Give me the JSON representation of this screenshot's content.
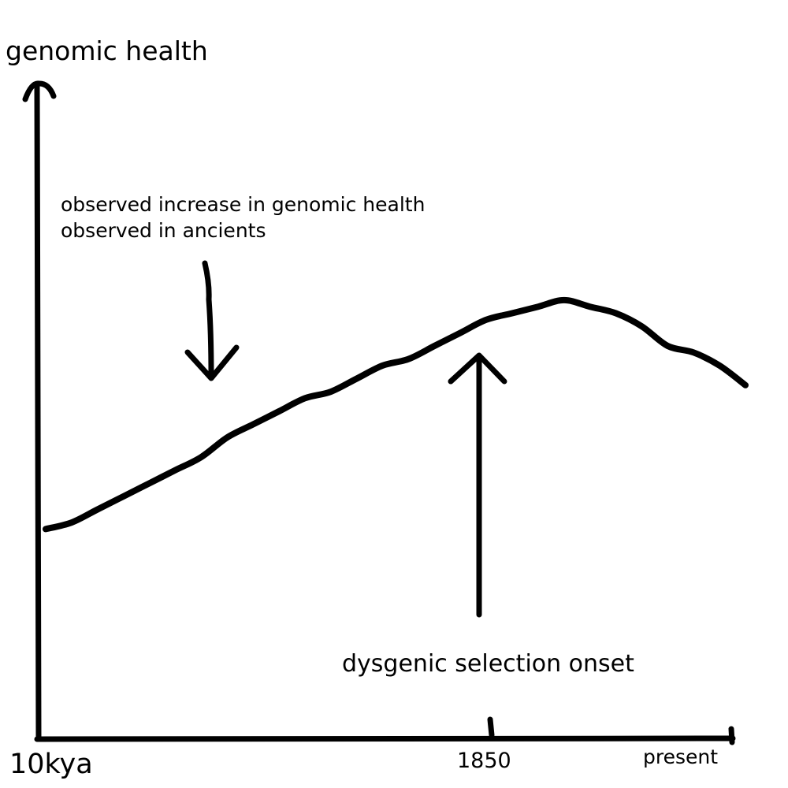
{
  "chart_data": {
    "type": "line",
    "title": "",
    "xlabel": "",
    "ylabel": "genomic health",
    "x_ticks": [
      "10kya",
      "1850",
      "present"
    ],
    "grid": false,
    "legend": "none",
    "series": [
      {
        "values": [
          0.32,
          0.33,
          0.35,
          0.37,
          0.39,
          0.41,
          0.43,
          0.46,
          0.48,
          0.5,
          0.52,
          0.53,
          0.55,
          0.57,
          0.58,
          0.6,
          0.62,
          0.64,
          0.65,
          0.66,
          0.67,
          0.66,
          0.65,
          0.63,
          0.6,
          0.59,
          0.57,
          0.54
        ]
      }
    ],
    "annotations": [
      {
        "label": "observed increase in genomic health",
        "label_line2": "observed in ancients",
        "target_x": 0.25,
        "direction": "down"
      },
      {
        "label": "dysgenic selection onset",
        "target_x": 0.63,
        "direction": "up"
      }
    ],
    "line_color": "#000000"
  }
}
